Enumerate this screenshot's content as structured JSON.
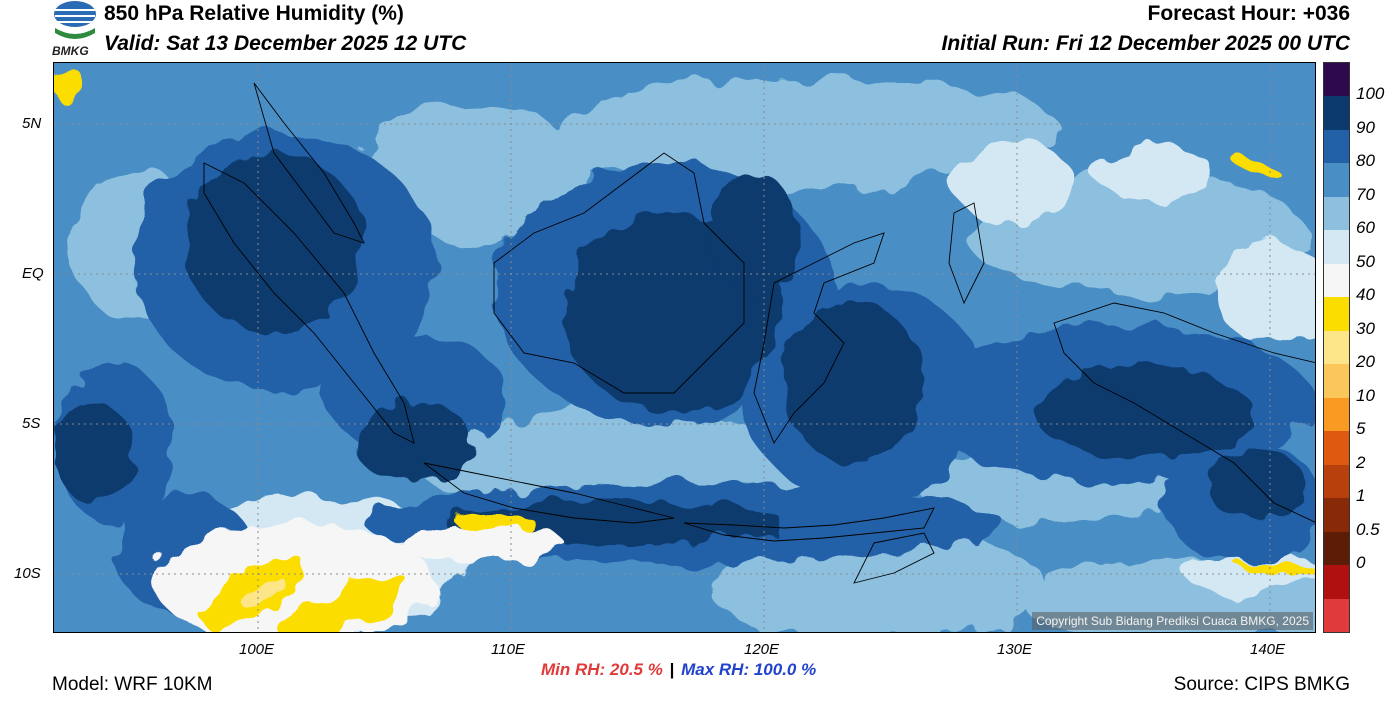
{
  "header": {
    "title": "850 hPa Relative Humidity (%)",
    "valid": "Valid: Sat 13 December 2025 12 UTC",
    "forecast_hour": "Forecast Hour: +036",
    "initial_run": "Initial Run: Fri 12 December 2025 00 UTC",
    "logo_text": "BMKG"
  },
  "map": {
    "lat_labels": [
      "5N",
      "EQ",
      "5S",
      "10S"
    ],
    "lon_labels": [
      "100E",
      "110E",
      "120E",
      "130E",
      "140E"
    ],
    "copyright": "Copyright Sub Bidang Prediksi Cuaca BMKG, 2025"
  },
  "colorbar": {
    "labels": [
      "100",
      "90",
      "80",
      "70",
      "60",
      "50",
      "40",
      "30",
      "20",
      "10",
      "5",
      "2",
      "1",
      "0.5",
      "0"
    ],
    "colors": [
      "#2d0a4e",
      "#0a3a6e",
      "#2260a8",
      "#4a8ec6",
      "#8cc0de",
      "#d4e8f4",
      "#f6f6f6",
      "#fcdd00",
      "#fde68a",
      "#fbc65a",
      "#f99a22",
      "#de5a10",
      "#b8400c",
      "#882a08",
      "#5c1c06",
      "#b01010",
      "#e03a3a"
    ]
  },
  "footer": {
    "model": "Model: WRF 10KM",
    "min_rh": "Min RH:  20.5 %",
    "separator": "|",
    "max_rh": "Max RH: 100.0 %",
    "source": "Source: CIPS BMKG"
  }
}
